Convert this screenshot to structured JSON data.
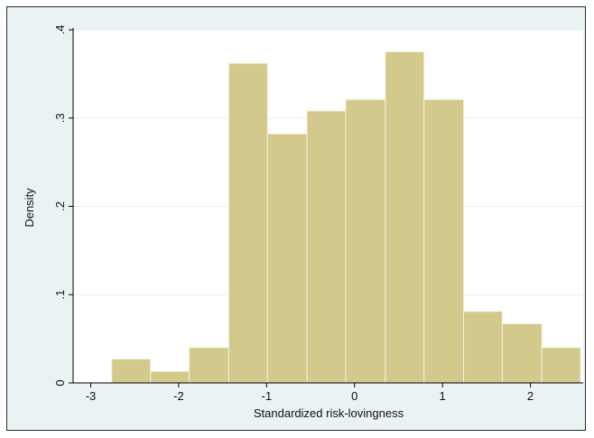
{
  "chart_data": {
    "type": "bar",
    "title": "",
    "xlabel": "Standardized risk-lovingness",
    "ylabel": "Density",
    "xlim": [
      -3.2,
      2.6
    ],
    "ylim": [
      0,
      0.4
    ],
    "x_ticks": [
      -3,
      -2,
      -1,
      0,
      1,
      2
    ],
    "x_tick_labels": [
      "-3",
      "-2",
      "-1",
      "0",
      "1",
      "2"
    ],
    "y_ticks": [
      0,
      0.1,
      0.2,
      0.3,
      0.4
    ],
    "y_tick_labels": [
      "0",
      ".1",
      ".2",
      ".3",
      ".4"
    ],
    "bins": [
      {
        "start": -2.76,
        "end": -2.32,
        "value": 0.027
      },
      {
        "start": -2.32,
        "end": -1.88,
        "value": 0.013
      },
      {
        "start": -1.88,
        "end": -1.43,
        "value": 0.04
      },
      {
        "start": -1.43,
        "end": -0.99,
        "value": 0.362
      },
      {
        "start": -0.99,
        "end": -0.54,
        "value": 0.282
      },
      {
        "start": -0.54,
        "end": -0.1,
        "value": 0.308
      },
      {
        "start": -0.1,
        "end": 0.35,
        "value": 0.321
      },
      {
        "start": 0.35,
        "end": 0.79,
        "value": 0.375
      },
      {
        "start": 0.79,
        "end": 1.24,
        "value": 0.321
      },
      {
        "start": 1.24,
        "end": 1.68,
        "value": 0.081
      },
      {
        "start": 1.68,
        "end": 2.13,
        "value": 0.067
      },
      {
        "start": 2.13,
        "end": 2.57,
        "value": 0.04
      }
    ],
    "grid": true,
    "bar_fill": "#d3c98c",
    "bar_stroke": "#f5f0d6",
    "plot_background": "#ffffff",
    "frame_background": "#eaf2f3"
  }
}
